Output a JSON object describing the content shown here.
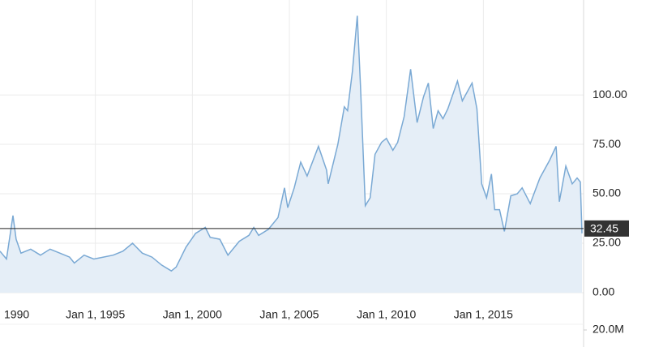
{
  "chart_data": {
    "type": "area",
    "x": [
      "1990-02",
      "1990-06",
      "1990-08",
      "1990-10",
      "1990-12",
      "1991-03",
      "1991-09",
      "1992-03",
      "1992-09",
      "1993-03",
      "1993-09",
      "1993-12",
      "1994-06",
      "1994-12",
      "1995-06",
      "1995-12",
      "1996-06",
      "1996-12",
      "1997-06",
      "1997-12",
      "1998-06",
      "1998-12",
      "1999-03",
      "1999-09",
      "2000-03",
      "2000-09",
      "2000-12",
      "2001-06",
      "2001-11",
      "2002-06",
      "2002-12",
      "2003-03",
      "2003-06",
      "2003-12",
      "2004-06",
      "2004-10",
      "2004-12",
      "2005-04",
      "2005-08",
      "2005-12",
      "2006-07",
      "2006-12",
      "2007-01",
      "2007-07",
      "2007-11",
      "2008-01",
      "2008-04",
      "2008-07",
      "2008-09",
      "2008-12",
      "2009-03",
      "2009-06",
      "2009-10",
      "2010-01",
      "2010-05",
      "2010-08",
      "2010-12",
      "2011-04",
      "2011-08",
      "2011-12",
      "2012-03",
      "2012-06",
      "2012-09",
      "2012-12",
      "2013-03",
      "2013-09",
      "2013-12",
      "2014-06",
      "2014-09",
      "2014-12",
      "2015-03",
      "2015-06",
      "2015-08",
      "2015-11",
      "2016-02",
      "2016-06",
      "2016-10",
      "2017-01",
      "2017-06",
      "2017-12",
      "2018-06",
      "2018-10",
      "2018-12",
      "2019-04",
      "2019-08",
      "2019-11",
      "2020-01",
      "2020-02"
    ],
    "values": [
      21,
      17,
      28,
      39,
      27,
      20,
      22,
      19,
      22,
      20,
      18,
      15,
      19,
      17,
      18,
      19,
      21,
      25,
      20,
      18,
      14,
      11,
      13,
      23,
      30,
      33,
      28,
      27,
      19,
      26,
      29,
      33,
      29,
      32,
      38,
      53,
      43,
      53,
      66,
      59,
      74,
      62,
      55,
      75,
      94,
      92,
      112,
      140,
      104,
      44,
      48,
      70,
      76,
      78,
      72,
      76,
      89,
      113,
      86,
      99,
      106,
      83,
      92,
      88,
      93,
      107,
      97,
      106,
      93,
      55,
      48,
      60,
      42,
      42,
      31,
      49,
      50,
      53,
      45,
      58,
      67,
      74,
      46,
      64,
      55,
      58,
      56,
      30
    ],
    "color": "#7aa9d4",
    "fill": "#e5eef7",
    "xlim": [
      "1990-02",
      "2020-03"
    ],
    "xticks": [
      {
        "value": "1990-01",
        "label": "1990"
      },
      {
        "value": "1995-01",
        "label": "Jan 1, 1995"
      },
      {
        "value": "2000-01",
        "label": "Jan 1, 2000"
      },
      {
        "value": "2005-01",
        "label": "Jan 1, 2005"
      },
      {
        "value": "2010-01",
        "label": "Jan 1, 2010"
      },
      {
        "value": "2015-01",
        "label": "Jan 1, 2015"
      }
    ],
    "ylim": [
      0,
      148
    ],
    "yticks": [
      {
        "value": 0,
        "label": "0.00"
      },
      {
        "value": 25,
        "label": "25.00"
      },
      {
        "value": 50,
        "label": "50.00"
      },
      {
        "value": 75,
        "label": "75.00"
      },
      {
        "value": 100,
        "label": "100.00"
      }
    ],
    "grid": true,
    "current_value": 32.45,
    "volume_ticks": [
      {
        "value": 20000000,
        "label": "20.0M"
      }
    ]
  }
}
